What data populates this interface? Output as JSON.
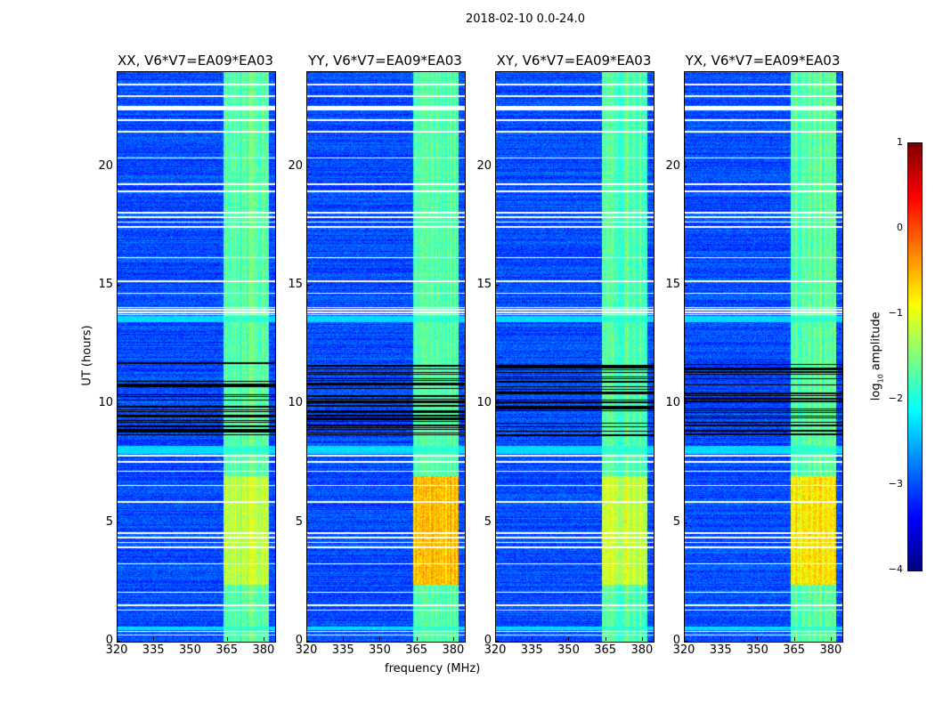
{
  "chart_data": {
    "type": "heatmap",
    "suptitle": "2018-02-10 0.0-24.0",
    "panels": [
      {
        "title": "XX, V6*V7=EA09*EA03",
        "boost": 0.5
      },
      {
        "title": "YY, V6*V7=EA09*EA03",
        "boost": 1.3
      },
      {
        "title": "XY, V6*V7=EA09*EA03",
        "boost": 0.6
      },
      {
        "title": "YX, V6*V7=EA09*EA03",
        "boost": 1.0
      }
    ],
    "xlabel": "frequency (MHz)",
    "ylabel": "UT (hours)",
    "xlim": [
      320,
      384.4
    ],
    "ylim": [
      0,
      24
    ],
    "xticks": [
      "320",
      "335",
      "350",
      "365",
      "380"
    ],
    "xtick_values": [
      320,
      335,
      350,
      365,
      380
    ],
    "yticks": [
      "0",
      "5",
      "10",
      "15",
      "20"
    ],
    "ytick_values": [
      0,
      5,
      10,
      15,
      20
    ],
    "colorbar": {
      "label_main": "log",
      "label_sub": "10",
      "label_rest": " amplitude",
      "ticks": [
        "1",
        "0",
        "−1",
        "−2",
        "−3",
        "−4"
      ],
      "tick_values": [
        1,
        0,
        -1,
        -2,
        -3,
        -4
      ],
      "range": [
        -4,
        1
      ],
      "colormap": "jet"
    },
    "background_level": -3.4,
    "rfi_band_mhz": [
      363,
      381.5
    ],
    "rfi_level": -2.2,
    "bright_hours": [
      2.4,
      7.0
    ],
    "dark_hours": [
      8.7,
      11.8
    ],
    "flagged_hours": [
      0.3,
      0.45,
      1.35,
      1.55,
      2.1,
      3.3,
      4.0,
      4.2,
      4.4,
      4.6,
      5.9,
      6.6,
      7.2,
      7.6,
      7.85,
      13.8,
      13.9,
      14.0,
      14.1,
      14.7,
      15.2,
      16.2,
      17.5,
      17.7,
      17.9,
      18.1,
      19.0,
      19.3,
      20.4,
      21.5,
      22.0,
      22.45,
      22.5,
      22.55,
      23.0,
      23.5
    ],
    "cyan_band_hours": [
      [
        7.95,
        8.25
      ],
      [
        0.5,
        0.65
      ],
      [
        13.5,
        13.75
      ]
    ]
  }
}
